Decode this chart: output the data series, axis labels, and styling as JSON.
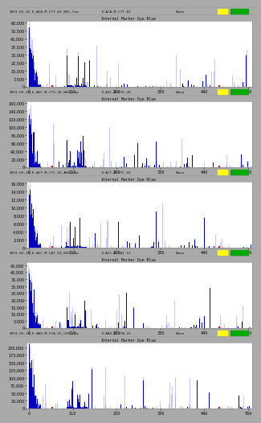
{
  "panels": [
    {
      "header_left": "2019-03-26_E-ACA-M-CTT-02_B01.fsa",
      "header_center": "E-ACA-M-CTT-02",
      "header_right": "None",
      "sub_header": "Internal_Marker_Dye_Blue",
      "y_max": 60000,
      "y_tick_step": 7500,
      "x_ticks": [
        0,
        110,
        220,
        330,
        440,
        550
      ],
      "color_sq1": "#ffff00",
      "color_sq2": "#00aa00",
      "seed": 1
    },
    {
      "header_left": "2019-03-26_E-AGC-M-CTG-28_B04.fsa",
      "header_center": "E-AGC-M-CTG-28",
      "header_right": "None",
      "sub_header": "Internal_Marker_Dye_Blue",
      "y_max": 160000,
      "y_tick_step": 20000,
      "x_ticks": [
        0,
        110,
        220,
        330,
        440,
        550
      ],
      "color_sq1": "#ffff00",
      "color_sq2": "#00aa00",
      "seed": 2
    },
    {
      "header_left": "2019-03-26_E-ACT-M-CTC-41_A06.fsa",
      "header_center": "E-ACT-M-CTC-41",
      "header_right": "None",
      "sub_header": "Internal_Marker_Dye_Blue",
      "y_max": 16000,
      "y_tick_step": 2000,
      "x_ticks": [
        0,
        110,
        220,
        330,
        440,
        550
      ],
      "color_sq1": "#ffff00",
      "color_sq2": "#00aa00",
      "seed": 3
    },
    {
      "header_left": "2019-03-26_E-ACC-M-CAT-53_E07.fsa",
      "header_center": "E-ACC-M-CAT-53",
      "header_right": "None",
      "sub_header": "Internal_Marker_Dye_Blue",
      "y_max": 46000,
      "y_tick_step": 5000,
      "x_ticks": [
        0,
        110,
        220,
        330,
        440,
        550
      ],
      "color_sq1": "#ffff00",
      "color_sq2": "#00aa00",
      "seed": 4
    },
    {
      "header_left": "2019-03-26_E-AAG-M-CTA-25_C05.fsa",
      "header_center": "E-AAG-M-CTA-25",
      "header_right": "None",
      "sub_header": "Internal_Marker_Dye_Blue",
      "y_max": 210000,
      "y_tick_step": 25000,
      "x_ticks": [
        0,
        110,
        220,
        330,
        440,
        550
      ],
      "color_sq1": "#ffff00",
      "color_sq2": "#00aa00",
      "seed": 5
    }
  ],
  "bar_color_dark": "#0000bb",
  "bar_color_light": "#9999ee",
  "header_bg": "#b8b8b8",
  "subheader_bg": "#cccccc",
  "plot_bg": "#ffffff",
  "fig_bg": "#aaaaaa",
  "n_points": 560
}
